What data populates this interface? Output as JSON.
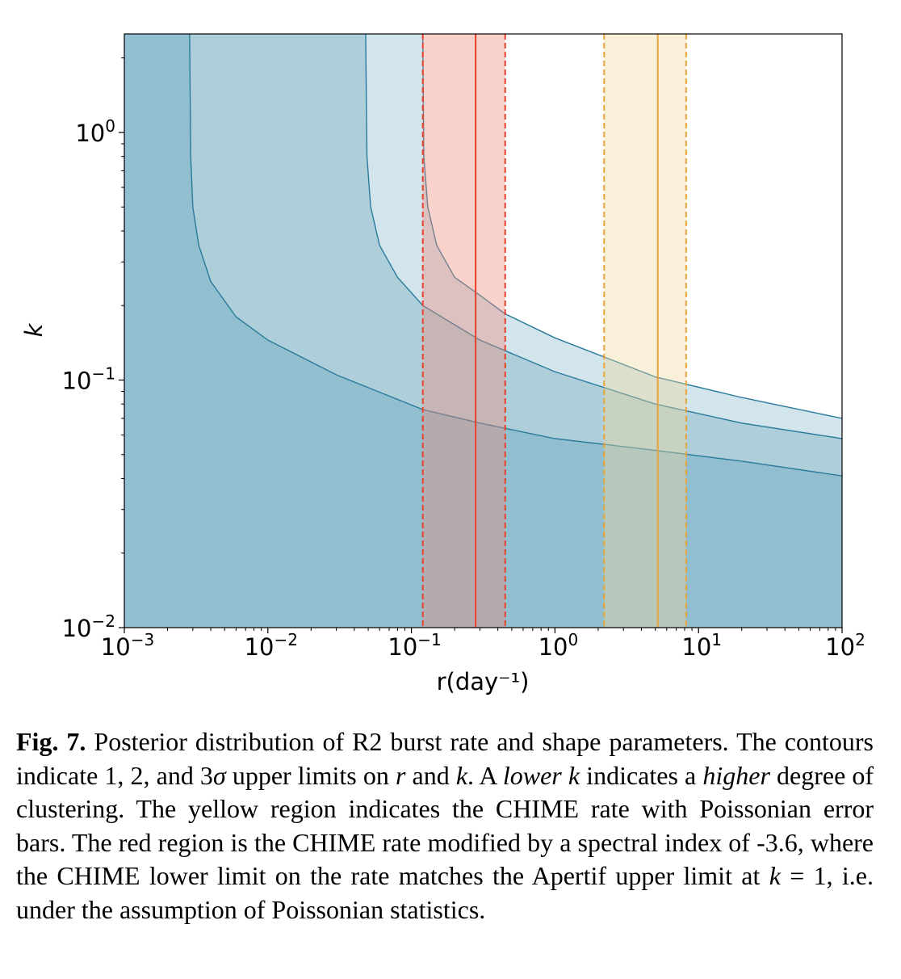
{
  "chart_data": {
    "type": "area",
    "xlabel": "r(day⁻¹)",
    "ylabel": "k",
    "x_scale": "log",
    "y_scale": "log",
    "xlim": [
      0.001,
      100
    ],
    "ylim": [
      0.01,
      2.5
    ],
    "x_ticks": [
      {
        "value": 0.001,
        "base": "10",
        "exp": "−3"
      },
      {
        "value": 0.01,
        "base": "10",
        "exp": "−2"
      },
      {
        "value": 0.1,
        "base": "10",
        "exp": "−1"
      },
      {
        "value": 1,
        "base": "10",
        "exp": "0"
      },
      {
        "value": 10,
        "base": "10",
        "exp": "1"
      },
      {
        "value": 100,
        "base": "10",
        "exp": "2"
      }
    ],
    "y_ticks": [
      {
        "value": 0.01,
        "base": "10",
        "exp": "−2"
      },
      {
        "value": 0.1,
        "base": "10",
        "exp": "−1"
      },
      {
        "value": 1,
        "base": "10",
        "exp": "0"
      }
    ],
    "grid": false,
    "contours": [
      {
        "level": "1σ",
        "color": "#91bfcf",
        "line_color": "#2a7b9b",
        "r_asymptote": 0.00285,
        "points": [
          [
            0.00285,
            2.5
          ],
          [
            0.0029,
            0.8
          ],
          [
            0.003,
            0.5
          ],
          [
            0.0033,
            0.35
          ],
          [
            0.004,
            0.25
          ],
          [
            0.006,
            0.18
          ],
          [
            0.01,
            0.145
          ],
          [
            0.03,
            0.105
          ],
          [
            0.12,
            0.076
          ],
          [
            0.3,
            0.067
          ],
          [
            1,
            0.058
          ],
          [
            5,
            0.052
          ],
          [
            20,
            0.047
          ],
          [
            100,
            0.041
          ]
        ]
      },
      {
        "level": "2σ",
        "color": "#aecfd9",
        "line_color": "#2a7b9b",
        "r_asymptote": 0.048,
        "points": [
          [
            0.048,
            2.5
          ],
          [
            0.049,
            0.8
          ],
          [
            0.052,
            0.5
          ],
          [
            0.06,
            0.35
          ],
          [
            0.08,
            0.26
          ],
          [
            0.12,
            0.2
          ],
          [
            0.3,
            0.145
          ],
          [
            1,
            0.108
          ],
          [
            5,
            0.08
          ],
          [
            20,
            0.067
          ],
          [
            100,
            0.058
          ]
        ]
      },
      {
        "level": "3σ",
        "color": "#d2e4ec",
        "line_color": "#2a7b9b",
        "r_asymptote": 0.12,
        "points": [
          [
            0.12,
            2.5
          ],
          [
            0.122,
            0.8
          ],
          [
            0.13,
            0.5
          ],
          [
            0.15,
            0.35
          ],
          [
            0.2,
            0.26
          ],
          [
            0.3,
            0.22
          ],
          [
            0.45,
            0.185
          ],
          [
            1,
            0.148
          ],
          [
            5,
            0.103
          ],
          [
            20,
            0.085
          ],
          [
            100,
            0.07
          ]
        ]
      }
    ],
    "bands": [
      {
        "name": "CHIME rate modified by spectral index -3.6",
        "color": "#f08a78",
        "line_color": "#e8412a",
        "center": 0.28,
        "low": 0.12,
        "high": 0.45
      },
      {
        "name": "CHIME rate",
        "color": "#f0d79a",
        "line_color": "#e8a43a",
        "center": 5.2,
        "low": 2.2,
        "high": 8.2
      }
    ]
  },
  "caption": {
    "label": "Fig. 7.",
    "segments": [
      {
        "text": " Posterior distribution of R2 burst rate and shape parameters. The contours indicate 1, 2, and 3",
        "style": "normal"
      },
      {
        "text": "σ",
        "style": "italic"
      },
      {
        "text": " upper limits on ",
        "style": "normal"
      },
      {
        "text": "r",
        "style": "italic"
      },
      {
        "text": " and ",
        "style": "normal"
      },
      {
        "text": "k",
        "style": "italic"
      },
      {
        "text": ". A ",
        "style": "normal"
      },
      {
        "text": "lower k",
        "style": "italic"
      },
      {
        "text": " indicates a ",
        "style": "normal"
      },
      {
        "text": "higher",
        "style": "italic"
      },
      {
        "text": " degree of clustering. The yellow region indicates the CHIME rate with Poissonian error bars. The red region is the CHIME rate modified by a spectral index of -3.6, where the CHIME lower limit on the rate matches the Apertif upper limit at ",
        "style": "normal"
      },
      {
        "text": "k",
        "style": "italic"
      },
      {
        "text": " = 1, i.e. under the assumption of Poissonian statistics.",
        "style": "normal"
      }
    ]
  }
}
